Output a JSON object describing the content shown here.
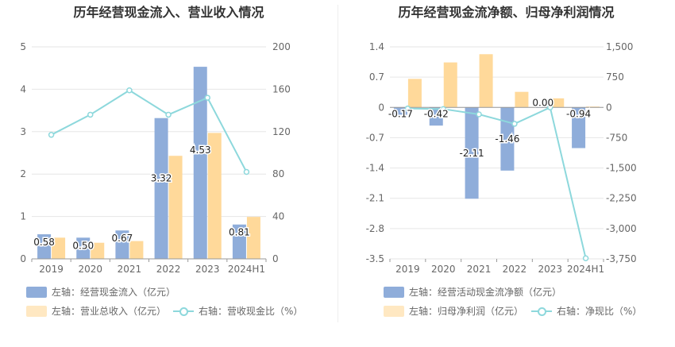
{
  "chart_data": [
    {
      "type": "bar",
      "title": "历年经营现金流入、营业收入情况",
      "categories": [
        "2019",
        "2020",
        "2021",
        "2022",
        "2023",
        "2024H1"
      ],
      "left_axis": {
        "min": 0,
        "max": 5,
        "ticks": [
          "0",
          "1",
          "2",
          "3",
          "4",
          "5"
        ]
      },
      "right_axis": {
        "min": 0,
        "max": 200,
        "ticks": [
          "0",
          "40",
          "80",
          "120",
          "160",
          "200"
        ]
      },
      "series": [
        {
          "name": "左轴：经营现金流入（亿元）",
          "axis": "left",
          "type": "bar",
          "color": "#8fadda",
          "values": [
            0.58,
            0.5,
            0.67,
            3.32,
            4.53,
            0.81
          ],
          "labels": [
            "0.58",
            "0.50",
            "0.67",
            "3.32",
            "4.53",
            "0.81"
          ]
        },
        {
          "name": "左轴：营业总收入（亿元）",
          "axis": "left",
          "type": "bar",
          "color": "#ffd99a",
          "values": [
            0.5,
            0.38,
            0.42,
            2.43,
            2.97,
            0.99
          ]
        },
        {
          "name": "右轴：营收现金比（%）",
          "axis": "right",
          "type": "line",
          "color": "#8dd8dc",
          "values": [
            117,
            136,
            159,
            136,
            152,
            82
          ]
        }
      ]
    },
    {
      "type": "bar",
      "title": "历年经营现金流净额、归母净利润情况",
      "categories": [
        "2019",
        "2020",
        "2021",
        "2022",
        "2023",
        "2024H1"
      ],
      "left_axis": {
        "min": -3.5,
        "max": 1.4,
        "ticks": [
          "-3.5",
          "-2.8",
          "-2.1",
          "-1.4",
          "-0.7",
          "0",
          "0.7",
          "1.4"
        ]
      },
      "right_axis": {
        "min": -3750,
        "max": 1500,
        "ticks": [
          "-3,750",
          "-3,000",
          "-2,250",
          "-1,500",
          "-750",
          "0",
          "750",
          "1,500"
        ]
      },
      "series": [
        {
          "name": "左轴：经营活动现金流净额（亿元）",
          "axis": "left",
          "type": "bar",
          "color": "#8fadda",
          "values": [
            -0.17,
            -0.42,
            -2.11,
            -1.46,
            0.0,
            -0.94
          ],
          "labels": [
            "-0.17",
            "-0.42",
            "-2.11",
            "-1.46",
            "0.00",
            "-0.94"
          ]
        },
        {
          "name": "左轴：归母净利润（亿元）",
          "axis": "left",
          "type": "bar",
          "color": "#ffd99a",
          "values": [
            0.66,
            1.04,
            1.23,
            0.36,
            0.21,
            0.02
          ]
        },
        {
          "name": "右轴：净现比（%）",
          "axis": "right",
          "type": "line",
          "color": "#8dd8dc",
          "values": [
            -27,
            -40,
            -171,
            -406,
            0,
            -3735
          ]
        }
      ]
    }
  ]
}
